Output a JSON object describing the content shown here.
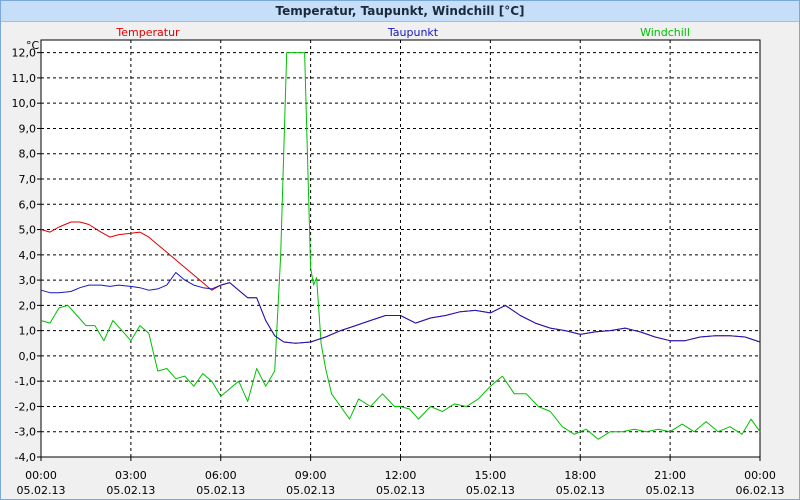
{
  "window": {
    "title": "Temperatur, Taupunkt, Windchill [°C]"
  },
  "chart_data": {
    "type": "line",
    "y_unit": "°C",
    "ylim": [
      -4,
      12.5
    ],
    "yticks": [
      "12,0",
      "11,0",
      "10,0",
      "9,0",
      "8,0",
      "7,0",
      "6,0",
      "5,0",
      "4,0",
      "3,0",
      "2,0",
      "1,0",
      "0,0",
      "-1,0",
      "-2,0",
      "-3,0",
      "-4,0"
    ],
    "ytick_values": [
      12,
      11,
      10,
      9,
      8,
      7,
      6,
      5,
      4,
      3,
      2,
      1,
      0,
      -1,
      -2,
      -3,
      -4
    ],
    "xlim": [
      0,
      24
    ],
    "xticks": [
      {
        "time": "00:00",
        "date": "05.02.13",
        "x": 0
      },
      {
        "time": "03:00",
        "date": "05.02.13",
        "x": 3
      },
      {
        "time": "06:00",
        "date": "05.02.13",
        "x": 6
      },
      {
        "time": "09:00",
        "date": "05.02.13",
        "x": 9
      },
      {
        "time": "12:00",
        "date": "05.02.13",
        "x": 12
      },
      {
        "time": "15:00",
        "date": "05.02.13",
        "x": 15
      },
      {
        "time": "18:00",
        "date": "05.02.13",
        "x": 18
      },
      {
        "time": "21:00",
        "date": "05.02.13",
        "x": 21
      },
      {
        "time": "00:00",
        "date": "06.02.13",
        "x": 24
      }
    ],
    "grid": true,
    "legend_position": "top",
    "series": [
      {
        "name": "Temperatur",
        "color": "#e00000",
        "x": [
          0,
          0.3,
          0.6,
          1,
          1.3,
          1.6,
          2,
          2.3,
          2.6,
          3,
          3.3,
          3.6,
          3.9,
          4.2,
          4.5,
          4.8,
          5.1,
          5.4,
          5.7,
          6,
          6.3,
          6.6,
          6.9,
          7.2,
          7.5,
          7.8,
          8.1,
          8.5,
          9,
          9.5,
          10,
          10.5,
          11,
          11.5,
          12,
          12.5,
          13,
          13.5,
          14,
          14.5,
          15,
          15.5,
          16,
          16.5,
          17,
          17.5,
          18,
          18.5,
          19,
          19.5,
          20,
          20.5,
          21,
          21.5,
          22,
          22.5,
          23,
          23.5,
          24
        ],
        "y": [
          5.0,
          4.9,
          5.1,
          5.3,
          5.3,
          5.2,
          4.9,
          4.7,
          4.8,
          4.85,
          4.9,
          4.7,
          4.4,
          4.1,
          3.8,
          3.5,
          3.2,
          2.9,
          2.6,
          2.8,
          2.9,
          2.6,
          2.3,
          2.3,
          1.4,
          0.8,
          0.55,
          0.5,
          0.55,
          0.75,
          1.0,
          1.2,
          1.4,
          1.6,
          1.6,
          1.3,
          1.5,
          1.6,
          1.75,
          1.8,
          1.7,
          2.0,
          1.6,
          1.3,
          1.1,
          1.0,
          0.85,
          0.95,
          1.0,
          1.1,
          0.95,
          0.75,
          0.6,
          0.6,
          0.75,
          0.8,
          0.8,
          0.75,
          0.55
        ]
      },
      {
        "name": "Taupunkt",
        "color": "#1818c0",
        "x": [
          0,
          0.3,
          0.6,
          1,
          1.3,
          1.6,
          2,
          2.3,
          2.6,
          3,
          3.3,
          3.6,
          3.9,
          4.2,
          4.5,
          4.8,
          5.1,
          5.4,
          5.7,
          6,
          6.3,
          6.6,
          6.9,
          7.2,
          7.5,
          7.8,
          8.1,
          8.5,
          9,
          9.5,
          10,
          10.5,
          11,
          11.5,
          12,
          12.5,
          13,
          13.5,
          14,
          14.5,
          15,
          15.5,
          16,
          16.5,
          17,
          17.5,
          18,
          18.5,
          19,
          19.5,
          20,
          20.5,
          21,
          21.5,
          22,
          22.5,
          23,
          23.5,
          24
        ],
        "y": [
          2.6,
          2.5,
          2.5,
          2.55,
          2.7,
          2.8,
          2.8,
          2.75,
          2.8,
          2.75,
          2.7,
          2.6,
          2.65,
          2.8,
          3.3,
          3.0,
          2.8,
          2.7,
          2.65,
          2.8,
          2.9,
          2.6,
          2.3,
          2.3,
          1.4,
          0.8,
          0.55,
          0.5,
          0.55,
          0.75,
          1.0,
          1.2,
          1.4,
          1.6,
          1.6,
          1.3,
          1.5,
          1.6,
          1.75,
          1.8,
          1.7,
          2.0,
          1.6,
          1.3,
          1.1,
          1.0,
          0.85,
          0.95,
          1.0,
          1.1,
          0.95,
          0.75,
          0.6,
          0.6,
          0.75,
          0.8,
          0.8,
          0.75,
          0.55
        ]
      },
      {
        "name": "Windchill",
        "color": "#00c000",
        "x": [
          0,
          0.3,
          0.6,
          0.9,
          1.2,
          1.5,
          1.8,
          2.1,
          2.4,
          2.7,
          3.0,
          3.3,
          3.6,
          3.9,
          4.2,
          4.5,
          4.8,
          5.1,
          5.4,
          5.7,
          6,
          6.3,
          6.6,
          6.9,
          7.2,
          7.5,
          7.8,
          8.0,
          8.2,
          8.4,
          8.6,
          8.8,
          9.0,
          9.1,
          9.2,
          9.35,
          9.5,
          9.7,
          10,
          10.3,
          10.6,
          11,
          11.4,
          11.8,
          12,
          12.3,
          12.6,
          13,
          13.4,
          13.8,
          14.2,
          14.6,
          15,
          15.4,
          15.8,
          16.2,
          16.6,
          17,
          17.4,
          17.8,
          18.2,
          18.6,
          19,
          19.4,
          19.8,
          20.2,
          20.6,
          21,
          21.4,
          21.8,
          22.2,
          22.6,
          23,
          23.4,
          23.7,
          24
        ],
        "y": [
          1.4,
          1.3,
          1.9,
          2.0,
          1.6,
          1.2,
          1.2,
          0.6,
          1.4,
          1.0,
          0.6,
          1.2,
          0.9,
          -0.6,
          -0.5,
          -0.9,
          -0.8,
          -1.2,
          -0.7,
          -1.0,
          -1.6,
          -1.3,
          -1.0,
          -1.8,
          -0.5,
          -1.2,
          -0.6,
          4.0,
          12.0,
          12.0,
          12.0,
          12.0,
          3.5,
          2.8,
          3.1,
          0.5,
          -0.5,
          -1.5,
          -2.0,
          -2.5,
          -1.7,
          -2.0,
          -1.5,
          -2.0,
          -2.0,
          -2.1,
          -2.5,
          -2.0,
          -2.2,
          -1.9,
          -2.0,
          -1.7,
          -1.2,
          -0.8,
          -1.5,
          -1.5,
          -2.0,
          -2.2,
          -2.8,
          -3.1,
          -2.9,
          -3.3,
          -3.0,
          -3.0,
          -2.9,
          -3.0,
          -2.9,
          -3.0,
          -2.7,
          -3.0,
          -2.6,
          -3.0,
          -2.8,
          -3.1,
          -2.5,
          -3.0
        ]
      }
    ]
  }
}
